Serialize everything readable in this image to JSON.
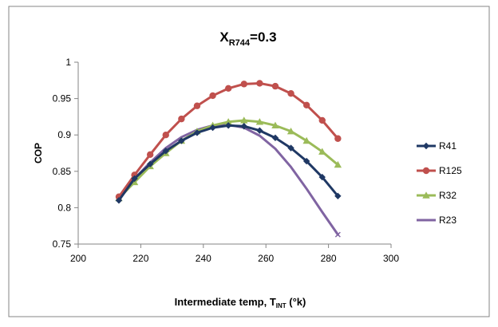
{
  "chart_data": {
    "type": "line",
    "title_main": "X",
    "title_sub": "R744",
    "title_tail": "=0.3",
    "xlabel_main": "Intermediate temp, T",
    "xlabel_sub": "INT",
    "xlabel_tail": " (°k)",
    "ylabel": "COP",
    "xlim": [
      200,
      300
    ],
    "ylim": [
      0.75,
      1
    ],
    "xticks": [
      200,
      220,
      240,
      260,
      280,
      300
    ],
    "yticks": [
      0.75,
      0.8,
      0.85,
      0.9,
      0.95,
      1
    ],
    "xtick_labels": [
      "200",
      "220",
      "240",
      "260",
      "280",
      "300"
    ],
    "ytick_labels": [
      "0.75",
      "0.8",
      "0.85",
      "0.9",
      "0.95",
      "1"
    ],
    "grid": false,
    "legend_position": "right",
    "x": [
      213,
      218,
      223,
      228,
      233,
      238,
      243,
      248,
      253,
      258,
      263,
      268,
      273,
      278,
      283
    ],
    "series": [
      {
        "name": "R41",
        "color": "#1f3864",
        "marker": "diamond",
        "values": [
          0.81,
          0.84,
          0.86,
          0.878,
          0.892,
          0.903,
          0.91,
          0.913,
          0.912,
          0.906,
          0.896,
          0.882,
          0.864,
          0.842,
          0.816
        ]
      },
      {
        "name": "R125",
        "color": "#c0504d",
        "marker": "circle",
        "values": [
          0.815,
          0.845,
          0.873,
          0.9,
          0.922,
          0.94,
          0.954,
          0.964,
          0.97,
          0.971,
          0.967,
          0.957,
          0.941,
          0.92,
          0.895
        ]
      },
      {
        "name": "R32",
        "color": "#9bbb59",
        "marker": "triangle",
        "values": [
          0.813,
          0.835,
          0.857,
          0.875,
          0.892,
          0.905,
          0.913,
          0.918,
          0.92,
          0.918,
          0.913,
          0.905,
          0.892,
          0.877,
          0.859
        ]
      },
      {
        "name": "R23",
        "color": "#8064a2",
        "marker": "x",
        "values": [
          0.813,
          0.84,
          0.862,
          0.882,
          0.897,
          0.907,
          0.913,
          0.914,
          0.91,
          0.899,
          0.881,
          0.856,
          0.826,
          0.794,
          0.763
        ]
      }
    ]
  }
}
